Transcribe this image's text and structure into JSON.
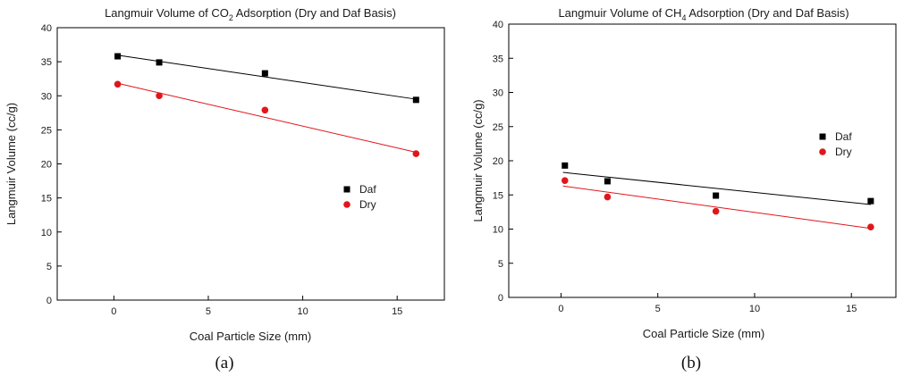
{
  "chart_data": [
    {
      "type": "scatter",
      "panel": "a",
      "title": {
        "pre": "Langmuir Volume of CO",
        "sub": "2",
        "post": " Adsorption (Dry and Daf Basis)"
      },
      "xlabel": "Coal Particle Size (mm)",
      "ylabel": "Langmuir Volume (cc/g)",
      "caption": "(a)",
      "xlim": [
        -3,
        17.5
      ],
      "ylim": [
        0,
        40
      ],
      "xticks": [
        0,
        5,
        10,
        15
      ],
      "yticks": [
        0,
        5,
        10,
        15,
        20,
        25,
        30,
        35,
        40
      ],
      "grid": false,
      "legend_position": "right-middle",
      "series": [
        {
          "name": "Daf",
          "marker": "square",
          "color": "#000000",
          "x": [
            0.2,
            2.4,
            8.0,
            16.0
          ],
          "y": [
            35.8,
            34.9,
            33.3,
            29.4
          ],
          "fit": {
            "x": [
              0.1,
              16.0
            ],
            "y": [
              36.0,
              29.5
            ]
          }
        },
        {
          "name": "Dry",
          "marker": "circle",
          "color": "#e0161b",
          "x": [
            0.2,
            2.4,
            8.0,
            16.0
          ],
          "y": [
            31.7,
            30.0,
            27.9,
            21.5
          ],
          "fit": {
            "x": [
              0.1,
              16.0
            ],
            "y": [
              31.9,
              21.7
            ]
          }
        }
      ]
    },
    {
      "type": "scatter",
      "panel": "b",
      "title": {
        "pre": "Langmuir Volume of CH",
        "sub": "4",
        "post": " Adsorption (Dry and Daf Basis)"
      },
      "xlabel": "Coal Particle Size (mm)",
      "ylabel": "Langmuir Volume (cc/g)",
      "caption": "(b)",
      "xlim": [
        -2.7,
        17.3
      ],
      "ylim": [
        0,
        40
      ],
      "xticks": [
        0,
        5,
        10,
        15
      ],
      "yticks": [
        0,
        5,
        10,
        15,
        20,
        25,
        30,
        35,
        40
      ],
      "grid": false,
      "legend_position": "right-middle",
      "series": [
        {
          "name": "Daf",
          "marker": "square",
          "color": "#000000",
          "x": [
            0.2,
            2.4,
            8.0,
            16.0
          ],
          "y": [
            19.3,
            17.0,
            14.9,
            14.1
          ],
          "fit": {
            "x": [
              0.1,
              16.0
            ],
            "y": [
              18.3,
              13.6
            ]
          }
        },
        {
          "name": "Dry",
          "marker": "circle",
          "color": "#e0161b",
          "x": [
            0.2,
            2.4,
            8.0,
            16.0
          ],
          "y": [
            17.1,
            14.7,
            12.6,
            10.3
          ],
          "fit": {
            "x": [
              0.1,
              16.0
            ],
            "y": [
              16.3,
              10.1
            ]
          }
        }
      ]
    }
  ]
}
